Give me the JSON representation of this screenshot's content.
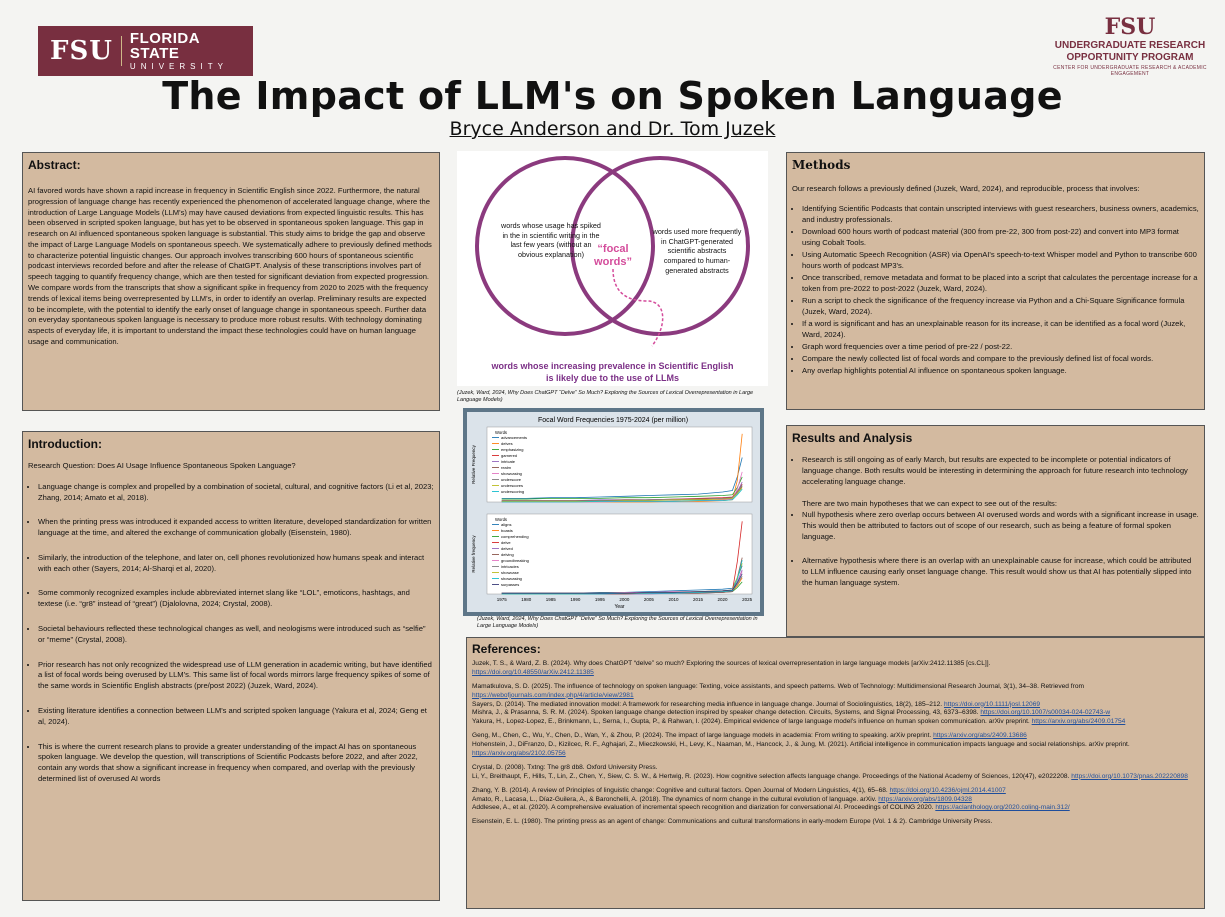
{
  "logos": {
    "left_mark": "FSU",
    "left_name": "FLORIDA STATE",
    "left_sub": "UNIVERSITY",
    "right_mark": "FSU",
    "right_line1": "UNDERGRADUATE RESEARCH",
    "right_line2": "OPPORTUNITY PROGRAM",
    "right_line3": "CENTER FOR UNDERGRADUATE RESEARCH & ACADEMIC ENGAGEMENT"
  },
  "title": "The Impact of LLM's on Spoken Language",
  "authors": "Bryce Anderson and Dr. Tom Juzek",
  "abstract": {
    "heading": "Abstract:",
    "text": "AI favored words have shown a rapid increase in frequency in Scientific English since 2022. Furthermore, the natural progression of language change has recently experienced the phenomenon of accelerated language change, where the introduction of Large Language Models (LLM's) may have caused deviations from expected linguistic results. This has been observed in scripted spoken language, but has yet to be observed in spontaneous spoken language. This gap in research on AI influenced spontaneous spoken language is substantial. This study aims to bridge the gap and observe the impact of Large Language Models on spontaneous speech. We systematically adhere to previously defined methods to characterize potential linguistic changes. Our approach involves transcribing 600 hours of spontaneous scientific podcast interviews recorded before and after the release of ChatGPT. Analysis of these transcriptions involves part of speech tagging to quantify frequency change, which are then tested for significant deviation from expected progression. We compare words from the transcripts that show a significant spike in frequency from 2020 to 2025 with the frequency trends of lexical items being overrepresented by LLM's, in order to identify an overlap. Preliminary results are expected to be incomplete, with the potential to identify the early onset of language change in spontaneous speech. Further data on everyday spontaneous spoken language is necessary to produce more robust results. With technology dominating aspects of everyday life, it is important to understand the impact these technologies could have on human language usage and communication."
  },
  "intro": {
    "heading": "Introduction:",
    "rq": "Research Question: Does AI Usage Influence Spontaneous Spoken Language?",
    "bullets": [
      "Language change is complex and propelled by a combination of societal, cultural, and cognitive factors (Li et al, 2023; Zhang, 2014; Amato et al, 2018).",
      "When the printing press was introduced it expanded access to written literature, developed standardization for written language at the time, and altered the exchange of communication globally (Eisenstein, 1980).",
      "Similarly, the introduction of the telephone, and later on, cell phones revolutionized how humans speak and interact with each other (Sayers, 2014; Al-Sharqi et al, 2020).",
      "Some commonly recognized examples include abbreviated internet slang like “LOL”, emoticons, hashtags, and textese (i.e. “gr8” instead of “great”) (Djalolovna, 2024; Crystal, 2008).",
      "Societal behaviours reflected these technological changes as well, and neologisms were introduced such as “selfie” or “meme” (Crystal, 2008).",
      "Prior research has not only recognized the widespread use of LLM generation in academic writing, but have identified a list of focal words being overused by LLM's. This same list of focal words mirrors large frequency spikes of some of the same words in Scientific English abstracts (pre/post 2022) (Juzek, Ward, 2024).",
      "Existing literature identifies a connection between LLM's and scripted spoken language (Yakura et al, 2024; Geng et al, 2024).",
      "This is where the current research plans to provide a greater understanding of the impact AI has on spontaneous spoken language. We develop the question, will transcriptions of Scientific Podcasts before 2022, and after 2022, contain any words that show a significant increase in frequency when compared, and overlap with the previously determined list of overused AI words"
    ]
  },
  "venn": {
    "left": "words whose usage has spiked in the in scientific writing in the last few years (without an obvious explanation)",
    "center": "“focal words”",
    "right": "words used more frequently in ChatGPT-generated scientific abstracts compared to human-generated abstracts",
    "bottom": "words whose increasing prevalence in Scientific English is likely due to the use of LLMs",
    "caption": "(Juzek, Ward, 2024, Why Does ChatGPT “Delve” So Much? Exploring the Sources of Lexical Overrepresentation in Large Language Models)",
    "colors": {
      "circle": "#8b3a7e",
      "center": "#d44c9b",
      "bottom": "#7b2f86"
    }
  },
  "chart": {
    "caption": "(Juzek, Ward, 2024, Why Does ChatGPT “Delve” So Much? Exploring the Sources of Lexical Overrepresentation in Large Language Models)"
  },
  "chart_data": [
    {
      "type": "line",
      "title": "Focal Word Frequencies 1975-2024 (per million)",
      "xlabel": "",
      "ylabel": "Relative Frequency",
      "legend_title": "Words",
      "legend_position": "top-left",
      "series_names": [
        "advancements",
        "delves",
        "emphasizing",
        "garnered",
        "intricate",
        "realm",
        "showcasing",
        "underscore",
        "underscores",
        "underscoring"
      ],
      "x": [
        1975,
        1980,
        1985,
        1990,
        1995,
        2000,
        2005,
        2010,
        2015,
        2020,
        2022,
        2023,
        2024
      ],
      "series": [
        {
          "name": "advancements",
          "values": [
            0.05,
            0.05,
            0.06,
            0.06,
            0.07,
            0.08,
            0.09,
            0.1,
            0.11,
            0.14,
            0.16,
            0.35,
            0.62
          ]
        },
        {
          "name": "delves",
          "values": [
            0,
            0,
            0,
            0,
            0,
            0,
            0,
            0.01,
            0.01,
            0.02,
            0.03,
            0.3,
            0.95
          ]
        },
        {
          "name": "emphasizing",
          "values": [
            0.04,
            0.04,
            0.05,
            0.05,
            0.05,
            0.06,
            0.06,
            0.07,
            0.08,
            0.09,
            0.1,
            0.2,
            0.35
          ]
        },
        {
          "name": "garnered",
          "values": [
            0.01,
            0.01,
            0.01,
            0.01,
            0.02,
            0.02,
            0.03,
            0.04,
            0.05,
            0.06,
            0.07,
            0.15,
            0.25
          ]
        },
        {
          "name": "intricate",
          "values": [
            0.02,
            0.02,
            0.02,
            0.02,
            0.03,
            0.03,
            0.03,
            0.04,
            0.04,
            0.05,
            0.06,
            0.14,
            0.28
          ]
        },
        {
          "name": "realm",
          "values": [
            0.02,
            0.02,
            0.02,
            0.02,
            0.02,
            0.03,
            0.03,
            0.03,
            0.04,
            0.04,
            0.05,
            0.12,
            0.22
          ]
        },
        {
          "name": "showcasing",
          "values": [
            0,
            0,
            0,
            0,
            0,
            0.01,
            0.01,
            0.01,
            0.02,
            0.03,
            0.04,
            0.18,
            0.42
          ]
        },
        {
          "name": "underscore",
          "values": [
            0.01,
            0.01,
            0.01,
            0.01,
            0.02,
            0.02,
            0.03,
            0.03,
            0.04,
            0.05,
            0.06,
            0.14,
            0.24
          ]
        },
        {
          "name": "underscores",
          "values": [
            0.01,
            0.01,
            0.01,
            0.01,
            0.01,
            0.02,
            0.02,
            0.03,
            0.03,
            0.04,
            0.05,
            0.12,
            0.2
          ]
        },
        {
          "name": "underscoring",
          "values": [
            0,
            0,
            0,
            0,
            0.01,
            0.01,
            0.01,
            0.01,
            0.02,
            0.02,
            0.03,
            0.1,
            0.18
          ]
        }
      ]
    },
    {
      "type": "line",
      "xlabel": "Year",
      "ylabel": "Relative frequency",
      "legend_title": "Words",
      "legend_position": "top-left",
      "series_names": [
        "aligns",
        "boasts",
        "comprehending",
        "delve",
        "delved",
        "delving",
        "groundbreaking",
        "intricacies",
        "showcase",
        "showcasing",
        "surpasses"
      ],
      "x": [
        1975,
        1980,
        1985,
        1990,
        1995,
        2000,
        2005,
        2010,
        2015,
        2020,
        2022,
        2023,
        2024
      ],
      "series": [
        {
          "name": "aligns",
          "values": [
            0.01,
            0.01,
            0.01,
            0.01,
            0.02,
            0.02,
            0.03,
            0.04,
            0.05,
            0.06,
            0.07,
            0.2,
            0.35
          ]
        },
        {
          "name": "boasts",
          "values": [
            0.01,
            0.01,
            0.01,
            0.01,
            0.01,
            0.01,
            0.02,
            0.02,
            0.03,
            0.03,
            0.04,
            0.1,
            0.2
          ]
        },
        {
          "name": "comprehending",
          "values": [
            0.01,
            0.01,
            0.01,
            0.01,
            0.01,
            0.01,
            0.01,
            0.02,
            0.02,
            0.02,
            0.03,
            0.08,
            0.15
          ]
        },
        {
          "name": "delve",
          "values": [
            0,
            0,
            0,
            0,
            0,
            0,
            0.01,
            0.01,
            0.02,
            0.03,
            0.04,
            0.4,
            0.9
          ]
        },
        {
          "name": "delved",
          "values": [
            0,
            0,
            0,
            0,
            0,
            0,
            0,
            0.01,
            0.01,
            0.02,
            0.03,
            0.15,
            0.3
          ]
        },
        {
          "name": "delving",
          "values": [
            0,
            0,
            0,
            0,
            0,
            0,
            0.01,
            0.01,
            0.01,
            0.02,
            0.03,
            0.2,
            0.45
          ]
        },
        {
          "name": "groundbreaking",
          "values": [
            0.01,
            0.01,
            0.01,
            0.01,
            0.01,
            0.02,
            0.02,
            0.03,
            0.03,
            0.04,
            0.05,
            0.15,
            0.28
          ]
        },
        {
          "name": "intricacies",
          "values": [
            0.01,
            0.01,
            0.01,
            0.01,
            0.01,
            0.01,
            0.02,
            0.02,
            0.02,
            0.03,
            0.04,
            0.12,
            0.22
          ]
        },
        {
          "name": "showcase",
          "values": [
            0,
            0,
            0,
            0,
            0.01,
            0.01,
            0.01,
            0.02,
            0.03,
            0.04,
            0.05,
            0.2,
            0.38
          ]
        },
        {
          "name": "showcasing",
          "values": [
            0,
            0,
            0,
            0,
            0,
            0.01,
            0.01,
            0.01,
            0.02,
            0.03,
            0.04,
            0.18,
            0.42
          ]
        },
        {
          "name": "surpasses",
          "values": [
            0.01,
            0.01,
            0.01,
            0.01,
            0.01,
            0.01,
            0.02,
            0.02,
            0.03,
            0.04,
            0.05,
            0.14,
            0.25
          ]
        }
      ],
      "xticks": [
        1975,
        1980,
        1985,
        1990,
        1995,
        2000,
        2005,
        2010,
        2015,
        2020,
        2025
      ]
    }
  ],
  "methods": {
    "heading": "Methods",
    "lead": "Our research follows a previously defined (Juzek, Ward, 2024), and reproducible, process that involves:",
    "bullets": [
      "Identifying Scientific Podcasts that contain unscripted interviews with guest researchers, business owners, academics, and industry professionals.",
      "Download 600 hours worth of podcast material (300 from pre-22, 300 from post-22) and convert into MP3 format using Cobalt Tools.",
      "Using Automatic Speech Recognition (ASR) via OpenAI's speech-to-text Whisper model and Python to transcribe 600 hours worth of podcast MP3's.",
      "Once transcribed, remove metadata and format to be placed into a script that calculates the percentage increase for a token from pre-2022 to post-2022 (Juzek, Ward, 2024).",
      "Run a script to check the significance of the frequency increase via Python and a Chi-Square Significance formula (Juzek, Ward, 2024).",
      "If a word is significant and has an unexplainable reason for its increase, it can be identified as a focal word (Juzek, Ward, 2024).",
      "Graph word frequencies over a time period of pre-22 / post-22.",
      "Compare the newly collected list of focal words and compare to the previously defined list of focal words.",
      "Any overlap highlights potential AI influence on spontaneous spoken language."
    ]
  },
  "results": {
    "heading": "Results and Analysis",
    "b1": "Research is still ongoing as of early March, but results are expected to be incomplete or potential indicators of language change. Both results would be interesting in determining the approach for future research into technology accelerating language change.",
    "sub": "There are two main hypotheses that we can expect to see out of the results:",
    "b2": "Null hypothesis where zero overlap occurs between AI overused words and words with a significant increase in usage. This would then be attributed to factors out of scope of our research, such as being a feature of formal spoken language.",
    "b3": "Alternative hypothesis where there is an overlap with an unexplainable cause for increase, which could be attributed to LLM influence causing early onset language change. This result would show us that AI has potentially slipped into the human language system."
  },
  "refs": {
    "heading": "References:",
    "r1": "Juzek, T. S., & Ward, Z. B. (2024). Why does ChatGPT “delve” so much? Exploring the sources of lexical overrepresentation in large language models [arXiv:2412.11385 [cs.CL]].",
    "r1l": "https://doi.org/10.48550/arXiv.2412.11385",
    "r2": "Mamatkulova, S. D. (2025). The influence of technology on spoken language: Texting, voice assistants, and speech patterns. Web of Technology: Multidimensional Research Journal, 3(1), 34–38. Retrieved from",
    "r2l": "https://webofjournals.com/index.php/4/article/view/2981",
    "r3": "Sayers, D. (2014). The mediated innovation model: A framework for researching media influence in language change. Journal of Sociolinguistics, 18(2), 185–212.",
    "r3l": "https://doi.org/10.1111/josl.12069",
    "r4": "Mishra, J., & Prasanna, S. R. M. (2024). Spoken language change detection inspired by speaker change detection. Circuits, Systems, and Signal Processing, 43, 6373–6398.",
    "r4l": "https://doi.org/10.1007/s00034-024-02743-w",
    "r5": "Yakura, H., Lopez-Lopez, E., Brinkmann, L., Serna, I., Gupta, P., & Rahwan, I. (2024). Empirical evidence of large language model's influence on human spoken communication. arXiv preprint.",
    "r5l": "https://arxiv.org/abs/2409.01754",
    "r6": "Geng, M., Chen, C., Wu, Y., Chen, D., Wan, Y., & Zhou, P. (2024). The impact of large language models in academia: From writing to speaking. arXiv preprint.",
    "r6l": "https://arxiv.org/abs/2409.13686",
    "r7": "Hohenstein, J., DiFranzo, D., Kizilcec, R. F., Aghajari, Z., Mieczkowski, H., Levy, K., Naaman, M., Hancock, J., & Jung, M. (2021). Artificial intelligence in communication impacts language and social relationships. arXiv preprint.",
    "r7l": "https://arxiv.org/abs/2102.05756",
    "r8": "Crystal, D. (2008). Txtng: The gr8 db8. Oxford University Press.",
    "r9": "Li, Y., Breithaupt, F., Hills, T., Lin, Z., Chen, Y., Siew, C. S. W., & Hertwig, R. (2023). How cognitive selection affects language change. Proceedings of the National Academy of Sciences, 120(47), e2022208.",
    "r9l": "https://doi.org/10.1073/pnas.202220898",
    "r10": "Zhang, Y. B. (2014). A review of Principles of linguistic change: Cognitive and cultural factors. Open Journal of Modern Linguistics, 4(1), 65–68.",
    "r10l": "https://doi.org/10.4236/ojml.2014.41007",
    "r11": "Amato, R., Lacasa, L., Díaz-Guilera, A., & Baronchelli, A. (2018). The dynamics of norm change in the cultural evolution of language. arXiv.",
    "r11l": "https://arxiv.org/abs/1809.04328",
    "r12": "Addlesee, A., et al. (2020). A comprehensive evaluation of incremental speech recognition and diarization for conversational AI. Proceedings of COLING 2020.",
    "r12l": "https://aclanthology.org/2020.coling-main.312/",
    "r13": "Eisenstein, E. L. (1980). The printing press as an agent of change: Communications and cultural transformations in early-modern Europe (Vol. 1 & 2). Cambridge University Press."
  }
}
